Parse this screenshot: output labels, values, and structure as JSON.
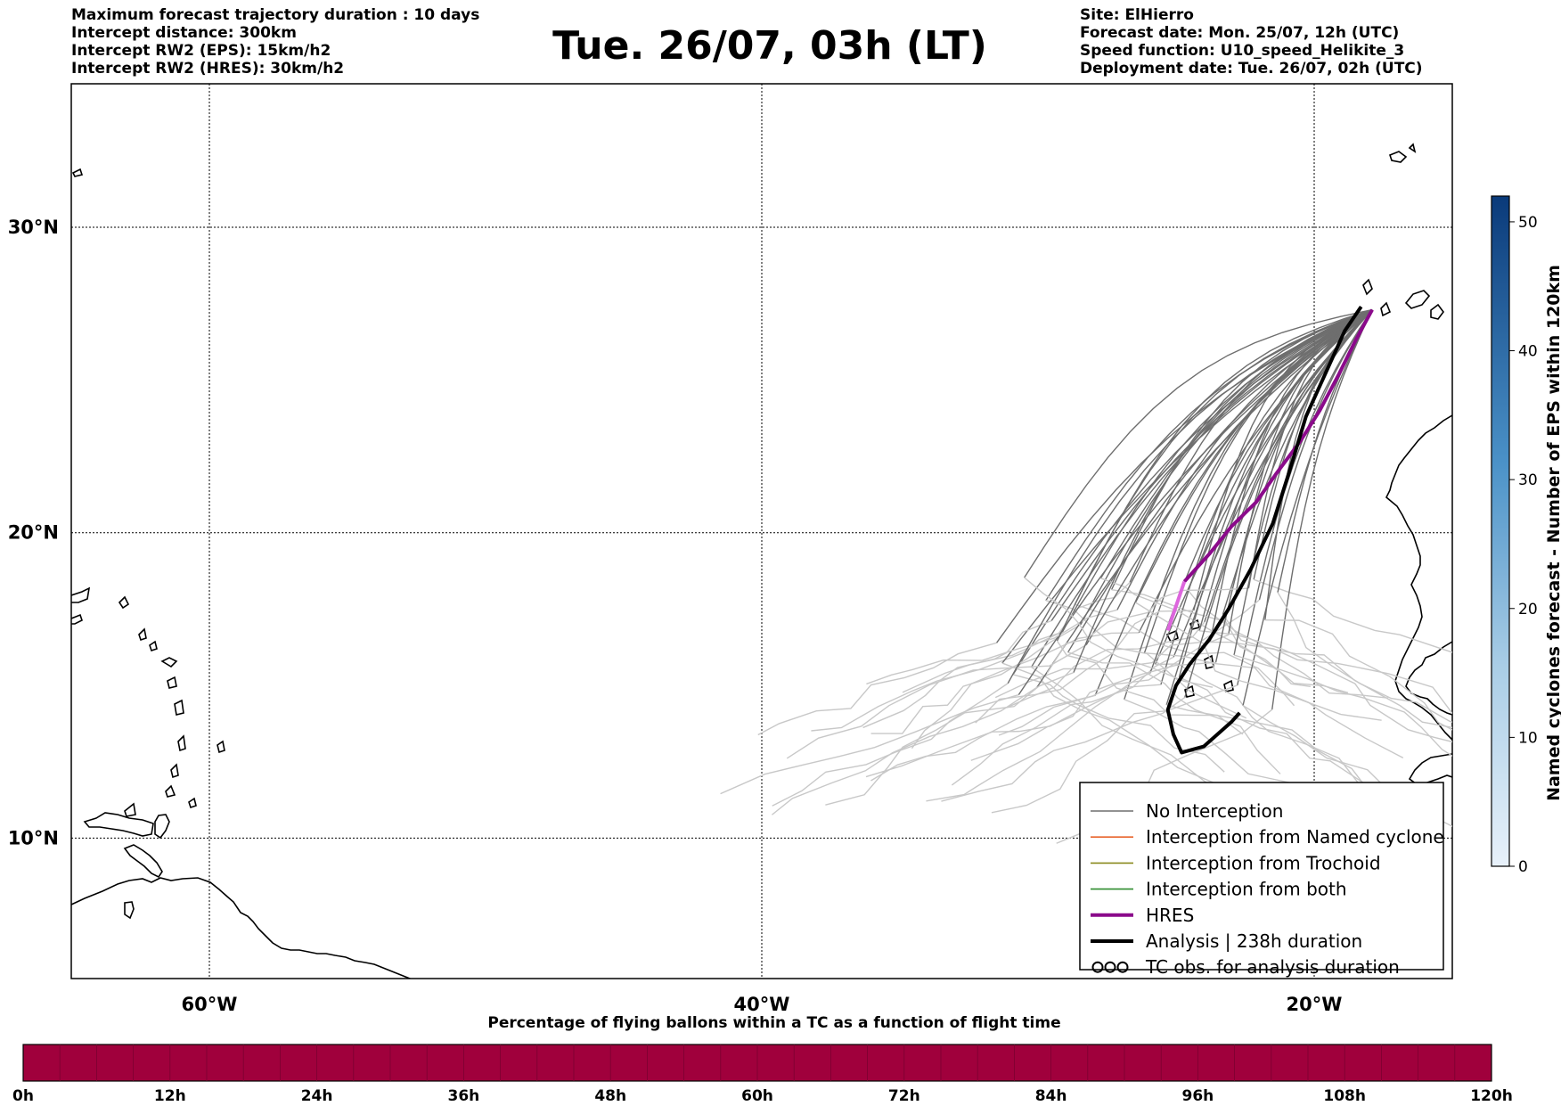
{
  "header": {
    "left": [
      "Maximum forecast trajectory duration : 10 days",
      "Intercept distance: 300km",
      "Intercept RW2 (EPS):  15km/h2",
      "Intercept RW2 (HRES): 30km/h2"
    ],
    "title": "Tue. 26/07, 03h (LT)",
    "right": [
      "Site: ElHierro",
      "Forecast date: Mon. 25/07, 12h (UTC)",
      "Speed function: U10_speed_Helikite_3",
      "Deployment date: Tue. 26/07, 02h (UTC)"
    ]
  },
  "colors": {
    "no_interception": "#6e6e6e",
    "no_interception_late": "#c8c8c8",
    "named_cyclone": "#e8642c",
    "trochoid": "#8a8a1e",
    "both": "#2e8b2e",
    "hres": "#8b0a8b",
    "hres_early": "#dd66dd",
    "analysis": "#000000",
    "flight_bar": "#a0003c"
  },
  "legend": {
    "items": [
      {
        "label": "No Interception",
        "kind": "no_interception"
      },
      {
        "label": "Interception from Named cyclone",
        "kind": "named_cyclone"
      },
      {
        "label": "Interception from Trochoid",
        "kind": "trochoid"
      },
      {
        "label": "Interception from both",
        "kind": "both"
      },
      {
        "label": "HRES",
        "kind": "hres"
      },
      {
        "label": "Analysis | 238h duration",
        "kind": "analysis"
      },
      {
        "label": "TC obs. for analysis duration",
        "kind": "tc_obs"
      }
    ]
  },
  "colorbar": {
    "label": "Named cyclones forecast - Number of EPS within 120km",
    "ticks": [
      "0",
      "10",
      "20",
      "30",
      "40",
      "50"
    ],
    "max": 52
  },
  "flight_bar": {
    "title": "Percentage of flying ballons within a TC as a function of flight time",
    "ticks": [
      "0h",
      "12h",
      "24h",
      "36h",
      "48h",
      "60h",
      "72h",
      "84h",
      "96h",
      "108h",
      "120h"
    ]
  },
  "chart_data": {
    "type": "line",
    "projection": "lon-lat map",
    "xlim": [
      -65,
      -15
    ],
    "ylim": [
      5.4,
      34.7
    ],
    "x_ticks": [
      {
        "value": -60,
        "label": "60°W"
      },
      {
        "value": -40,
        "label": "40°W"
      },
      {
        "value": -20,
        "label": "20°W"
      }
    ],
    "y_ticks": [
      {
        "value": 10,
        "label": "10°N"
      },
      {
        "value": 20,
        "label": "20°N"
      },
      {
        "value": 30,
        "label": "30°N"
      }
    ],
    "grid": true,
    "legend_position": "bottom-right",
    "origin": {
      "site": "ElHierro",
      "lon": -17.9,
      "lat": 27.3
    },
    "hres_track": {
      "name": "HRES",
      "points": [
        [
          -17.9,
          27.3
        ],
        [
          -18.5,
          26.3
        ],
        [
          -19.1,
          25.2
        ],
        [
          -19.8,
          24.0
        ],
        [
          -20.5,
          23.0
        ],
        [
          -21.4,
          21.9
        ],
        [
          -22.1,
          21.0
        ],
        [
          -23.0,
          20.2
        ],
        [
          -23.8,
          19.3
        ],
        [
          -24.7,
          18.4
        ]
      ],
      "early_points": [
        [
          -24.7,
          18.4
        ],
        [
          -25.0,
          17.6
        ],
        [
          -25.3,
          16.8
        ]
      ]
    },
    "analysis_track": {
      "name": "Analysis | 238h duration",
      "points": [
        [
          -18.3,
          27.4
        ],
        [
          -18.9,
          26.6
        ],
        [
          -19.5,
          25.4
        ],
        [
          -20.3,
          23.8
        ],
        [
          -20.9,
          22.0
        ],
        [
          -21.5,
          20.3
        ],
        [
          -22.3,
          18.8
        ],
        [
          -23.1,
          17.5
        ],
        [
          -23.8,
          16.5
        ],
        [
          -24.5,
          15.7
        ],
        [
          -25.0,
          15.0
        ],
        [
          -25.3,
          14.2
        ],
        [
          -25.1,
          13.4
        ],
        [
          -24.8,
          12.8
        ],
        [
          -24.0,
          13.0
        ],
        [
          -23.5,
          13.4
        ],
        [
          -23.0,
          13.8
        ],
        [
          -22.7,
          14.1
        ]
      ]
    },
    "eps_summary": {
      "name": "No Interception",
      "members": 50
    }
  }
}
